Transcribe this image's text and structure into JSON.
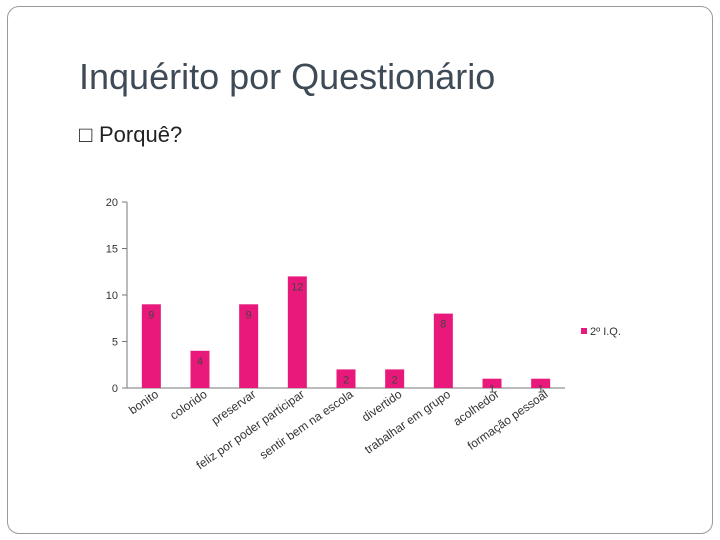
{
  "slide": {
    "title": "Inquérito por Questionário",
    "bullet_glyph": "□",
    "bullet_text": "Porquê?"
  },
  "chart_data": {
    "type": "bar",
    "categories": [
      "bonito",
      "colorido",
      "preservar",
      "feliz por poder participar",
      "sentir bem na escola",
      "divertido",
      "trabalhar em grupo",
      "acolhedor",
      "formação pessoal"
    ],
    "series": [
      {
        "name": "2º I.Q.",
        "values": [
          9,
          4,
          9,
          12,
          2,
          2,
          8,
          1,
          1
        ]
      }
    ],
    "ylim": [
      0,
      20
    ],
    "yticks": [
      0,
      5,
      10,
      15,
      20
    ],
    "grid": false,
    "legend": "right",
    "bar_color": "#e8197a"
  }
}
